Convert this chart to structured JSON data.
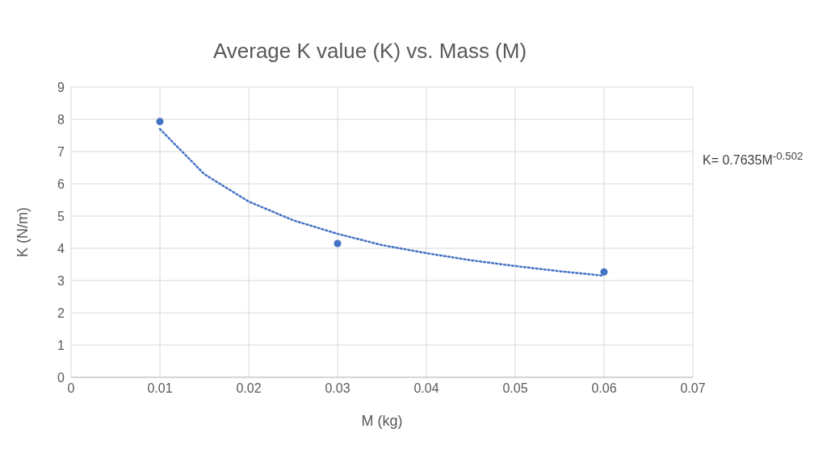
{
  "chart_data": {
    "type": "scatter",
    "title": "Average K value (K) vs. Mass (M)",
    "xlabel": "M (kg)",
    "ylabel": "K (N/m)",
    "annotations": [
      "K= 0.7635M$^{-0.502}$"
    ],
    "xlim": [
      0,
      0.07
    ],
    "xticks": [
      0,
      0.01,
      0.02,
      0.03,
      0.04,
      0.05,
      0.06,
      0.07
    ],
    "ylim": [
      0,
      9
    ],
    "yticks": [
      0,
      1,
      2,
      3,
      4,
      5,
      6,
      7,
      8,
      9
    ],
    "grid": true,
    "series": [
      {
        "type": "scatter",
        "color": "#4472c4",
        "marker": "circle",
        "x": [
          0.01,
          0.03,
          0.06
        ],
        "values": [
          7.93,
          4.15,
          3.27
        ]
      },
      {
        "type": "line",
        "color": "#4472c4",
        "marker": "none",
        "line_style": "dotted",
        "x": [
          0.01,
          0.015,
          0.02,
          0.025,
          0.03,
          0.035,
          0.04,
          0.045,
          0.05,
          0.055,
          0.06
        ],
        "values": [
          7.7,
          6.3,
          5.45,
          4.87,
          4.45,
          4.1,
          3.85,
          3.63,
          3.45,
          3.29,
          3.15
        ]
      }
    ]
  }
}
